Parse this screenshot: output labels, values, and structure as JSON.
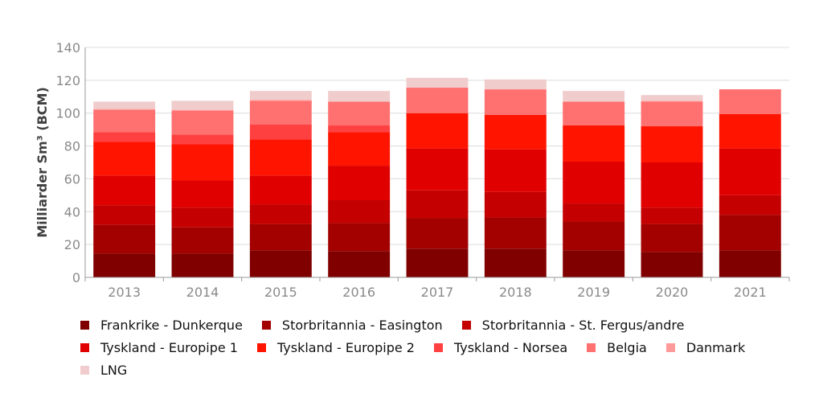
{
  "chart_data": {
    "type": "bar",
    "stacked": true,
    "categories": [
      "2013",
      "2014",
      "2015",
      "2016",
      "2017",
      "2018",
      "2019",
      "2020",
      "2021"
    ],
    "ylabel": "Milliarder Sm³ (BCM)",
    "ylim": [
      0,
      140
    ],
    "yticks": [
      0,
      20,
      40,
      60,
      80,
      100,
      120,
      140
    ],
    "grid": true,
    "legend_position": "bottom",
    "series": [
      {
        "name": "Frankrike - Dunkerque",
        "color": "#800000",
        "values": [
          14.5,
          14.5,
          16.5,
          16,
          17.5,
          17.5,
          16.5,
          15.5,
          16.5
        ]
      },
      {
        "name": "Storbritannia - Easington",
        "color": "#a30000",
        "values": [
          17.5,
          16,
          16,
          17,
          18.5,
          19,
          17.5,
          17,
          21.5
        ]
      },
      {
        "name": "Storbritannia - St. Fergus/andre",
        "color": "#c40000",
        "values": [
          12,
          12,
          12,
          14,
          17,
          15.5,
          11,
          10,
          12
        ]
      },
      {
        "name": "Tyskland - Europipe 1",
        "color": "#e00000",
        "values": [
          18,
          16.5,
          17.5,
          21,
          25.5,
          26,
          25.5,
          27.5,
          28.5
        ]
      },
      {
        "name": "Tyskland - Europipe 2",
        "color": "#ff1400",
        "values": [
          20.5,
          22,
          22,
          20.5,
          21.5,
          21,
          22,
          22,
          21
        ]
      },
      {
        "name": "Tyskland - Norsea",
        "color": "#ff4040",
        "values": [
          6,
          6,
          9,
          4,
          0,
          0,
          0,
          0,
          0
        ]
      },
      {
        "name": "Belgia",
        "color": "#ff7070",
        "values": [
          13.5,
          14.5,
          14.5,
          14.5,
          15.5,
          15.5,
          14.5,
          15,
          15
        ]
      },
      {
        "name": "Danmark",
        "color": "#ff9a9a",
        "values": [
          0.5,
          0.5,
          0.5,
          0,
          0,
          0,
          0,
          0.5,
          0
        ]
      },
      {
        "name": "LNG",
        "color": "#f0cccc",
        "values": [
          4.5,
          5.5,
          5.5,
          6.5,
          6,
          6,
          6.5,
          3.5,
          0
        ]
      }
    ]
  }
}
